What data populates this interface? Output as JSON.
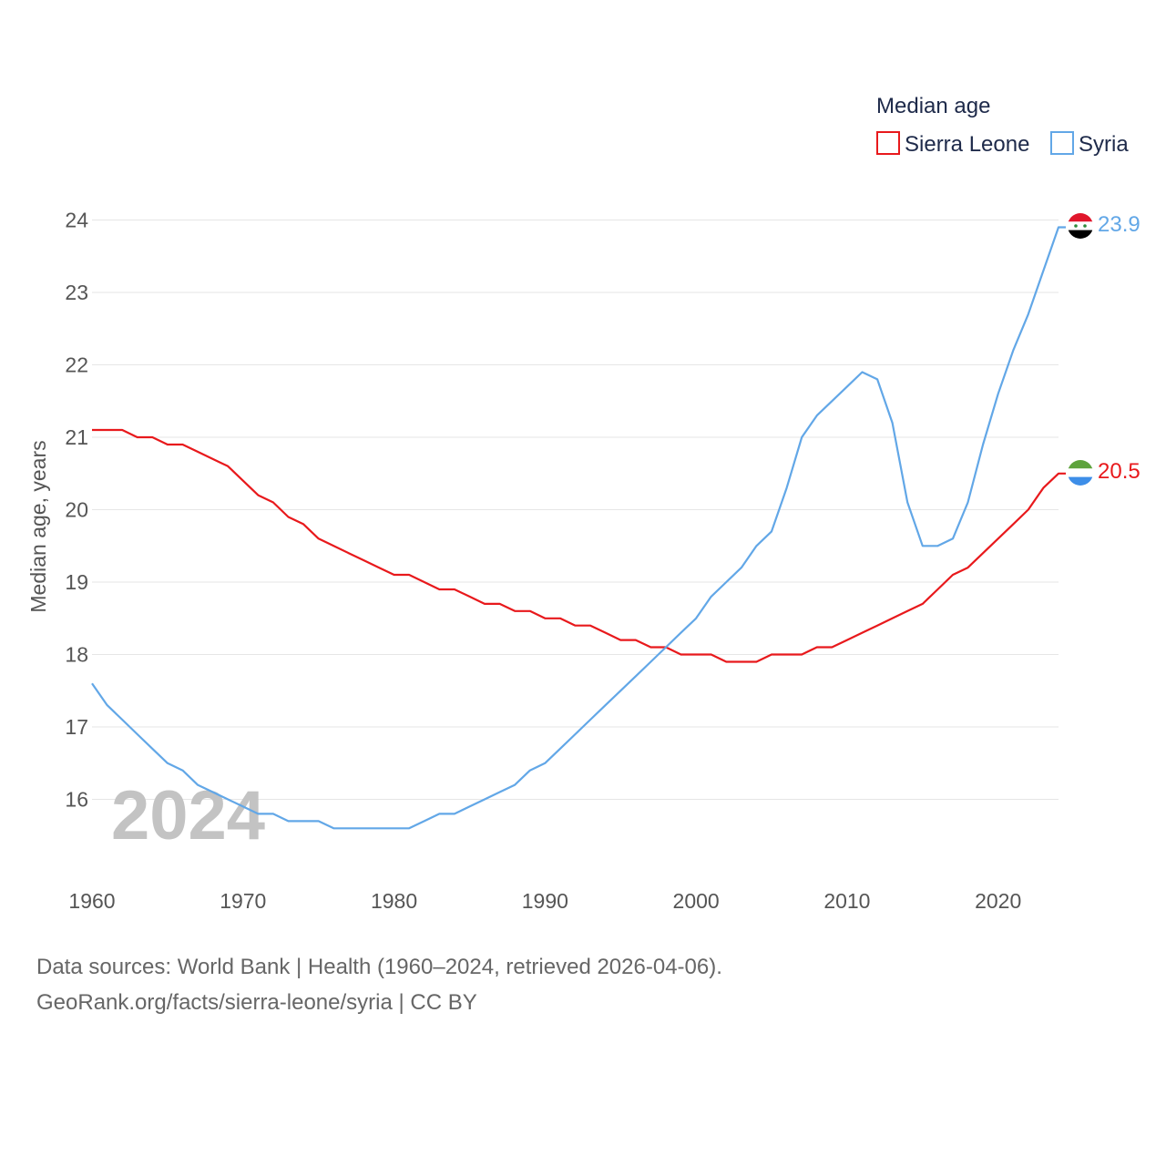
{
  "chart_data": {
    "type": "line",
    "title": "",
    "xlabel": "",
    "ylabel": "Median age, years",
    "xlim": [
      1960,
      2024
    ],
    "ylim": [
      15,
      24.5
    ],
    "xticks": [
      1960,
      1970,
      1980,
      1990,
      2000,
      2010,
      2020
    ],
    "yticks": [
      16,
      17,
      18,
      19,
      20,
      21,
      22,
      23,
      24
    ],
    "legend": {
      "title": "Median age",
      "position": "top-right",
      "items": [
        "Sierra Leone",
        "Syria"
      ]
    },
    "year_label": "2024",
    "x": [
      1960,
      1961,
      1962,
      1963,
      1964,
      1965,
      1966,
      1967,
      1968,
      1969,
      1970,
      1971,
      1972,
      1973,
      1974,
      1975,
      1976,
      1977,
      1978,
      1979,
      1980,
      1981,
      1982,
      1983,
      1984,
      1985,
      1986,
      1987,
      1988,
      1989,
      1990,
      1991,
      1992,
      1993,
      1994,
      1995,
      1996,
      1997,
      1998,
      1999,
      2000,
      2001,
      2002,
      2003,
      2004,
      2005,
      2006,
      2007,
      2008,
      2009,
      2010,
      2011,
      2012,
      2013,
      2014,
      2015,
      2016,
      2017,
      2018,
      2019,
      2020,
      2021,
      2022,
      2023,
      2024
    ],
    "series": [
      {
        "name": "Sierra Leone",
        "color": "#e8191c",
        "end_label": "20.5",
        "values": [
          21.1,
          21.1,
          21.1,
          21.0,
          21.0,
          20.9,
          20.9,
          20.8,
          20.7,
          20.6,
          20.4,
          20.2,
          20.1,
          19.9,
          19.8,
          19.6,
          19.5,
          19.4,
          19.3,
          19.2,
          19.1,
          19.1,
          19.0,
          18.9,
          18.9,
          18.8,
          18.7,
          18.7,
          18.6,
          18.6,
          18.5,
          18.5,
          18.4,
          18.4,
          18.3,
          18.2,
          18.2,
          18.1,
          18.1,
          18.0,
          18.0,
          18.0,
          17.9,
          17.9,
          17.9,
          18.0,
          18.0,
          18.0,
          18.1,
          18.1,
          18.2,
          18.3,
          18.4,
          18.5,
          18.6,
          18.7,
          18.9,
          19.1,
          19.2,
          19.4,
          19.6,
          19.8,
          20.0,
          20.3,
          20.5
        ]
      },
      {
        "name": "Syria",
        "color": "#62a7e7",
        "end_label": "23.9",
        "values": [
          17.6,
          17.3,
          17.1,
          16.9,
          16.7,
          16.5,
          16.4,
          16.2,
          16.1,
          16.0,
          15.9,
          15.8,
          15.8,
          15.7,
          15.7,
          15.7,
          15.6,
          15.6,
          15.6,
          15.6,
          15.6,
          15.6,
          15.7,
          15.8,
          15.8,
          15.9,
          16.0,
          16.1,
          16.2,
          16.4,
          16.5,
          16.7,
          16.9,
          17.1,
          17.3,
          17.5,
          17.7,
          17.9,
          18.1,
          18.3,
          18.5,
          18.8,
          19.0,
          19.2,
          19.5,
          19.7,
          20.3,
          21.0,
          21.3,
          21.5,
          21.7,
          21.9,
          21.8,
          21.2,
          20.1,
          19.5,
          19.5,
          19.6,
          20.1,
          20.9,
          21.6,
          22.2,
          22.7,
          23.3,
          23.9
        ]
      }
    ]
  },
  "source": {
    "line1": "Data sources: World Bank | Health (1960–2024, retrieved 2026-04-06).",
    "line2": "GeoRank.org/facts/sierra-leone/syria | CC BY"
  }
}
